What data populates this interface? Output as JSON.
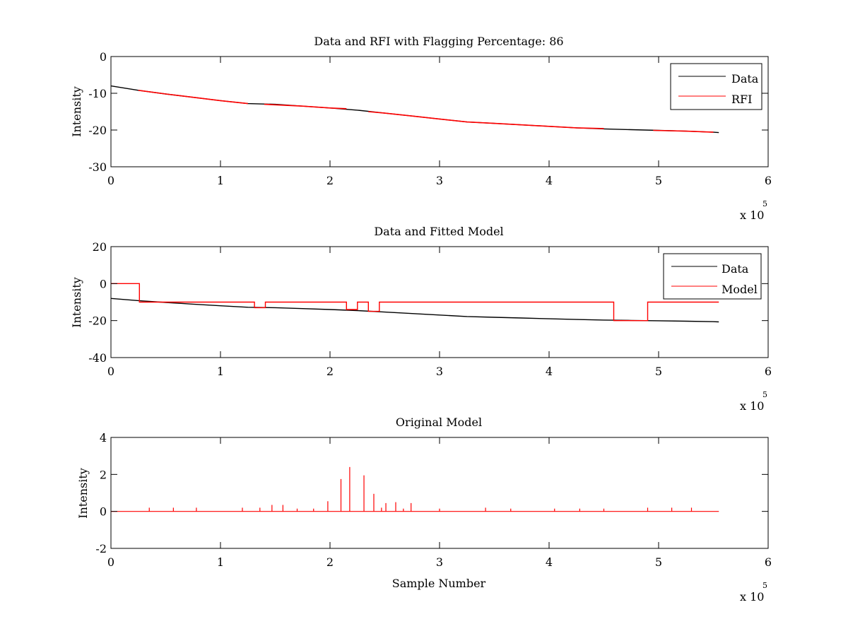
{
  "chart_data": [
    {
      "type": "line",
      "title": "Data and RFI with Flagging Percentage: 86",
      "xlabel": "",
      "ylabel": "Intensity",
      "xlim": [
        0,
        6
      ],
      "ylim": [
        -30,
        0
      ],
      "xticks": [
        "0",
        "1",
        "2",
        "3",
        "4",
        "5",
        "6"
      ],
      "yticks": [
        "-30",
        "-20",
        "-10",
        "0"
      ],
      "x_exponent": {
        "base": "x 10",
        "power": "5"
      },
      "legend": {
        "position": "top-right",
        "entries": [
          "Data",
          "RFI"
        ]
      },
      "series": [
        {
          "name": "Data",
          "color": "#000000",
          "x": [
            0,
            0.25,
            0.5,
            0.75,
            1.0,
            1.25,
            1.5,
            1.75,
            2.0,
            2.25,
            2.5,
            2.75,
            3.0,
            3.25,
            3.5,
            3.75,
            4.0,
            4.25,
            4.5,
            4.75,
            5.0,
            5.25,
            5.5,
            5.55
          ],
          "y": [
            -8.0,
            -9.2,
            -10.2,
            -11.1,
            -12.0,
            -12.8,
            -13.0,
            -13.5,
            -14.0,
            -14.6,
            -15.4,
            -16.2,
            -17.0,
            -17.8,
            -18.2,
            -18.6,
            -19.0,
            -19.4,
            -19.7,
            -19.9,
            -20.1,
            -20.3,
            -20.6,
            -20.7
          ]
        },
        {
          "name": "RFI",
          "color": "#ff0000",
          "segments": [
            {
              "x": [
                0.25,
                0.5,
                0.75,
                1.0,
                1.25
              ],
              "y": [
                -9.2,
                -10.2,
                -11.1,
                -12.0,
                -12.8
              ]
            },
            {
              "x": [
                1.4,
                1.75,
                2.0,
                2.15
              ],
              "y": [
                -13.0,
                -13.5,
                -14.0,
                -14.2
              ]
            },
            {
              "x": [
                2.35,
                2.5,
                2.75,
                3.0,
                3.25,
                3.5,
                3.75,
                4.0,
                4.25,
                4.5
              ],
              "y": [
                -15.0,
                -15.4,
                -16.2,
                -17.0,
                -17.8,
                -18.2,
                -18.6,
                -19.0,
                -19.4,
                -19.6
              ]
            },
            {
              "x": [
                4.95,
                5.25,
                5.5
              ],
              "y": [
                -20.1,
                -20.3,
                -20.6
              ]
            }
          ]
        }
      ]
    },
    {
      "type": "line",
      "title": "Data and Fitted Model",
      "xlabel": "",
      "ylabel": "Intensity",
      "xlim": [
        0,
        6
      ],
      "ylim": [
        -40,
        20
      ],
      "xticks": [
        "0",
        "1",
        "2",
        "3",
        "4",
        "5",
        "6"
      ],
      "yticks": [
        "-40",
        "-20",
        "0",
        "20"
      ],
      "x_exponent": {
        "base": "x 10",
        "power": "5"
      },
      "legend": {
        "position": "top-right",
        "entries": [
          "Data",
          "Model"
        ]
      },
      "series": [
        {
          "name": "Data",
          "color": "#000000",
          "x": [
            0,
            0.25,
            0.5,
            0.75,
            1.0,
            1.25,
            1.5,
            1.75,
            2.0,
            2.25,
            2.5,
            2.75,
            3.0,
            3.25,
            3.5,
            3.75,
            4.0,
            4.25,
            4.5,
            4.75,
            5.0,
            5.25,
            5.5,
            5.55
          ],
          "y": [
            -8.0,
            -9.2,
            -10.2,
            -11.1,
            -12.0,
            -12.8,
            -13.0,
            -13.5,
            -14.0,
            -14.6,
            -15.4,
            -16.2,
            -17.0,
            -17.8,
            -18.2,
            -18.6,
            -19.0,
            -19.4,
            -19.7,
            -19.9,
            -20.1,
            -20.3,
            -20.6,
            -20.7
          ]
        },
        {
          "name": "Model",
          "color": "#ff0000",
          "x": [
            0,
            0.26,
            0.26,
            1.31,
            1.31,
            1.41,
            1.41,
            2.15,
            2.15,
            2.25,
            2.25,
            2.35,
            2.35,
            2.45,
            2.45,
            4.59,
            4.59,
            4.9,
            4.9,
            5.55
          ],
          "y": [
            0,
            0,
            -10,
            -10,
            -13,
            -13,
            -10,
            -10,
            -14,
            -14,
            -10,
            -10,
            -15,
            -15,
            -10,
            -10,
            -20,
            -20,
            -10,
            -10
          ]
        }
      ]
    },
    {
      "type": "line",
      "title": "Original Model",
      "xlabel": "Sample Number",
      "ylabel": "Intensity",
      "xlim": [
        0,
        6
      ],
      "ylim": [
        -2,
        4
      ],
      "xticks": [
        "0",
        "1",
        "2",
        "3",
        "4",
        "5",
        "6"
      ],
      "yticks": [
        "-2",
        "0",
        "2",
        "4"
      ],
      "x_exponent": {
        "base": "x 10",
        "power": "5"
      },
      "series": [
        {
          "color": "#ff0000",
          "baseline": 0,
          "baseline_x": [
            0,
            5.55
          ],
          "spikes": [
            {
              "x": 1.98,
              "y": 0.55
            },
            {
              "x": 2.1,
              "y": 1.75
            },
            {
              "x": 2.18,
              "y": 2.4
            },
            {
              "x": 2.31,
              "y": 1.95
            },
            {
              "x": 2.4,
              "y": 0.95
            },
            {
              "x": 2.51,
              "y": 0.45
            },
            {
              "x": 2.6,
              "y": 0.5
            },
            {
              "x": 2.74,
              "y": 0.45
            },
            {
              "x": 1.47,
              "y": 0.35
            },
            {
              "x": 1.57,
              "y": 0.35
            },
            {
              "x": 0.35,
              "y": 0.2
            },
            {
              "x": 0.57,
              "y": 0.2
            },
            {
              "x": 0.78,
              "y": 0.2
            },
            {
              "x": 1.2,
              "y": 0.2
            },
            {
              "x": 1.36,
              "y": 0.2
            },
            {
              "x": 1.7,
              "y": 0.15
            },
            {
              "x": 1.85,
              "y": 0.15
            },
            {
              "x": 2.47,
              "y": 0.2
            },
            {
              "x": 2.67,
              "y": 0.15
            },
            {
              "x": 3.0,
              "y": 0.15
            },
            {
              "x": 3.42,
              "y": 0.2
            },
            {
              "x": 3.65,
              "y": 0.15
            },
            {
              "x": 4.05,
              "y": 0.15
            },
            {
              "x": 4.28,
              "y": 0.15
            },
            {
              "x": 4.5,
              "y": 0.15
            },
            {
              "x": 4.9,
              "y": 0.2
            },
            {
              "x": 5.12,
              "y": 0.2
            },
            {
              "x": 5.3,
              "y": 0.2
            }
          ]
        }
      ]
    }
  ]
}
